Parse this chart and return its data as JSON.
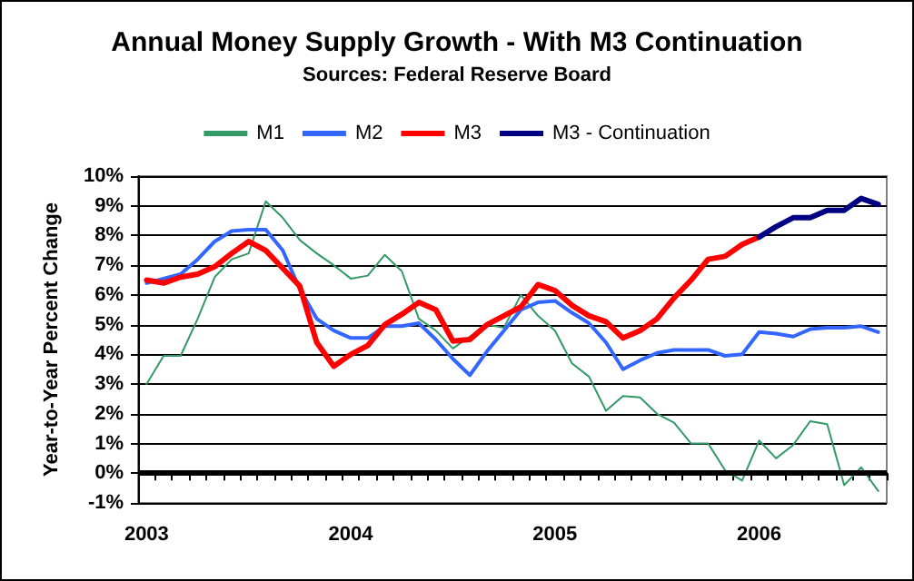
{
  "chart_data": {
    "type": "line",
    "title": "Annual Money Supply Growth - With M3 Continuation",
    "subtitle": "Sources: Federal Reserve Board",
    "ylabel": "Year-to-Year Percent Change",
    "categories": [
      "2003",
      null,
      null,
      null,
      null,
      null,
      null,
      null,
      null,
      null,
      null,
      null,
      "2004",
      null,
      null,
      null,
      null,
      null,
      null,
      null,
      null,
      null,
      null,
      null,
      "2005",
      null,
      null,
      null,
      null,
      null,
      null,
      null,
      null,
      null,
      null,
      null,
      "2006",
      null,
      null,
      null,
      null,
      null,
      null,
      null
    ],
    "series": [
      {
        "name": "M1",
        "color": "#339966",
        "values": [
          3.0,
          3.95,
          3.95,
          5.2,
          6.6,
          7.2,
          7.4,
          9.15,
          8.6,
          7.85,
          7.4,
          7.0,
          6.55,
          6.65,
          7.35,
          6.8,
          5.2,
          4.8,
          4.2,
          4.6,
          5.0,
          4.9,
          6.0,
          5.3,
          4.8,
          3.7,
          3.25,
          2.1,
          2.6,
          2.55,
          2.0,
          1.7,
          1.0,
          1.0,
          0.1,
          -0.25,
          1.1,
          0.5,
          0.95,
          1.75,
          1.65,
          -0.4,
          0.2,
          -0.6
        ]
      },
      {
        "name": "M2",
        "color": "#3366ff",
        "values": [
          6.4,
          6.55,
          6.7,
          7.2,
          7.8,
          8.15,
          8.2,
          8.2,
          7.5,
          6.2,
          5.2,
          4.8,
          4.55,
          4.55,
          4.95,
          4.95,
          5.05,
          4.5,
          3.85,
          3.3,
          4.1,
          4.8,
          5.5,
          5.75,
          5.8,
          5.4,
          5.05,
          4.4,
          3.5,
          3.8,
          4.05,
          4.15,
          4.15,
          4.15,
          3.95,
          4.0,
          4.75,
          4.7,
          4.6,
          4.85,
          4.9,
          4.9,
          4.95,
          4.75
        ]
      },
      {
        "name": "M3",
        "color": "#ff0000",
        "values": [
          6.5,
          6.4,
          6.6,
          6.7,
          6.95,
          7.4,
          7.8,
          7.5,
          6.9,
          6.3,
          4.4,
          3.6,
          4.0,
          4.3,
          5.0,
          5.35,
          5.75,
          5.5,
          4.45,
          4.5,
          5.0,
          5.3,
          5.6,
          6.35,
          6.15,
          5.65,
          5.3,
          5.1,
          4.55,
          4.8,
          5.2,
          5.9,
          6.5,
          7.2,
          7.3,
          7.7,
          7.95,
          null,
          null,
          null,
          null,
          null,
          null,
          null
        ]
      },
      {
        "name": "M3 - Continuation",
        "color": "#000080",
        "values": [
          null,
          null,
          null,
          null,
          null,
          null,
          null,
          null,
          null,
          null,
          null,
          null,
          null,
          null,
          null,
          null,
          null,
          null,
          null,
          null,
          null,
          null,
          null,
          null,
          null,
          null,
          null,
          null,
          null,
          null,
          null,
          null,
          null,
          null,
          null,
          null,
          7.95,
          8.3,
          8.6,
          8.6,
          8.85,
          8.85,
          9.25,
          9.05
        ]
      }
    ],
    "ylim": [
      -1,
      10
    ],
    "yticks": [
      {
        "value": -1,
        "label": "-1%"
      },
      {
        "value": 0,
        "label": "0%"
      },
      {
        "value": 1,
        "label": "1%"
      },
      {
        "value": 2,
        "label": "2%"
      },
      {
        "value": 3,
        "label": "3%"
      },
      {
        "value": 4,
        "label": "4%"
      },
      {
        "value": 5,
        "label": "5%"
      },
      {
        "value": 6,
        "label": "6%"
      },
      {
        "value": 7,
        "label": "7%"
      },
      {
        "value": 8,
        "label": "8%"
      },
      {
        "value": 9,
        "label": "9%"
      },
      {
        "value": 10,
        "label": "10%"
      }
    ],
    "ref_lines": [
      {
        "axis": "y",
        "value": 0,
        "color": "#000000",
        "line_style": "solid"
      }
    ],
    "grid": "y",
    "legend": "top",
    "marker": "none",
    "line_style": "solid"
  }
}
